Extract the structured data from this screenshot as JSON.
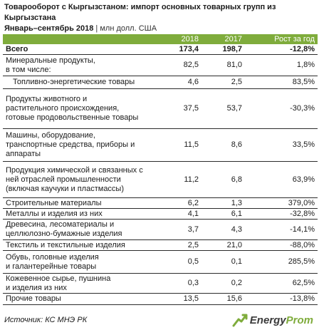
{
  "title": {
    "line1": "Товарооборот с Кыргызстаном: импорт основных товарных групп из Кыргызстана",
    "line2": "Январь–сентябрь 2018",
    "unit": " | млн долл. США"
  },
  "table": {
    "headers": [
      "",
      "2018",
      "2017",
      "Рост за год"
    ],
    "rows": [
      {
        "name": "Всего",
        "v2018": "173,4",
        "v2017": "198,7",
        "growth": "-12,8%",
        "kind": "total"
      },
      {
        "name": "Минеральные продукты,\nв том числе:",
        "v2018": "82,5",
        "v2017": "81,0",
        "growth": "1,8%",
        "kind": "normal"
      },
      {
        "name": "Топливно-энергетические товары",
        "v2018": "4,6",
        "v2017": "2,5",
        "growth": "83,5%",
        "kind": "sub"
      },
      {
        "name": "Продукты животного и\nрастительного происхождения,\nготовые продовольственные товары",
        "v2018": "37,5",
        "v2017": "53,7",
        "growth": "-30,3%",
        "kind": "normal"
      },
      {
        "name": "Машины, оборудование,\nтранспортные средства, приборы и\nаппараты",
        "v2018": "11,5",
        "v2017": "8,6",
        "growth": "33,5%",
        "kind": "normal"
      },
      {
        "name": "Продукция химической и связанных с\nней отраслей промышленности\n(включая каучуки и пластмассы)",
        "v2018": "11,2",
        "v2017": "6,8",
        "growth": "63,9%",
        "kind": "normal"
      },
      {
        "name": "Строительные материалы",
        "v2018": "6,2",
        "v2017": "1,3",
        "growth": "379,0%",
        "kind": "normal"
      },
      {
        "name": "Металлы и изделия из них",
        "v2018": "4,1",
        "v2017": "6,1",
        "growth": "-32,8%",
        "kind": "normal"
      },
      {
        "name": "Древесина, лесоматериалы и\nцеллюлозно-бумажные изделия",
        "v2018": "3,7",
        "v2017": "4,3",
        "growth": "-14,1%",
        "kind": "normal"
      },
      {
        "name": "Текстиль и текстильные изделия",
        "v2018": "2,5",
        "v2017": "21,0",
        "growth": "-88,0%",
        "kind": "normal"
      },
      {
        "name": "Обувь, головные изделия\nи галантерейные товары",
        "v2018": "0,5",
        "v2017": "0,1",
        "growth": "285,5%",
        "kind": "normal"
      },
      {
        "name": "Кожевенное сырье, пушнина\nи изделия из них",
        "v2018": "0,3",
        "v2017": "0,2",
        "growth": "62,5%",
        "kind": "normal"
      },
      {
        "name": "Прочие товары",
        "v2018": "13,5",
        "v2017": "15,6",
        "growth": "-13,8%",
        "kind": "normal"
      }
    ]
  },
  "footer": {
    "source": "Источник: КС МНЭ РК",
    "logo_part1": "Energy",
    "logo_part2": "Prom",
    "logo_icon": "energyprom-arrow-icon",
    "accent_color": "#7fac3c"
  }
}
